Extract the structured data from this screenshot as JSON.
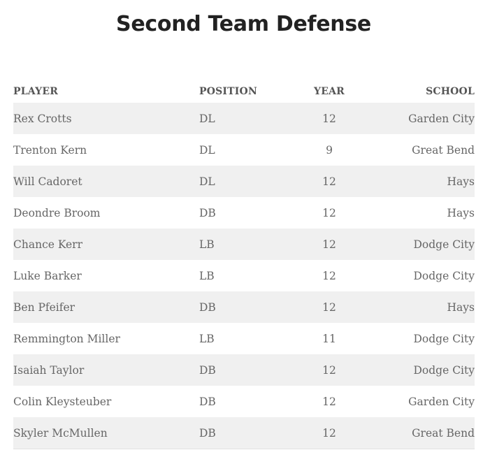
{
  "title": "Second Team Defense",
  "table": {
    "headers": {
      "player": "PLAYER",
      "position": "POSITION",
      "year": "YEAR",
      "school": "SCHOOL"
    },
    "rows": [
      {
        "player": "Rex Crotts",
        "position": "DL",
        "year": "12",
        "school": "Garden City"
      },
      {
        "player": "Trenton Kern",
        "position": "DL",
        "year": "9",
        "school": "Great Bend"
      },
      {
        "player": "Will Cadoret",
        "position": "DL",
        "year": "12",
        "school": "Hays"
      },
      {
        "player": "Deondre Broom",
        "position": "DB",
        "year": "12",
        "school": "Hays"
      },
      {
        "player": "Chance Kerr",
        "position": "LB",
        "year": "12",
        "school": "Dodge City"
      },
      {
        "player": "Luke Barker",
        "position": "LB",
        "year": "12",
        "school": "Dodge City"
      },
      {
        "player": "Ben Pfeifer",
        "position": "DB",
        "year": "12",
        "school": "Hays"
      },
      {
        "player": "Remmington Miller",
        "position": "LB",
        "year": "11",
        "school": "Dodge City"
      },
      {
        "player": "Isaiah Taylor",
        "position": "DB",
        "year": "12",
        "school": "Dodge City"
      },
      {
        "player": "Colin Kleysteuber",
        "position": "DB",
        "year": "12",
        "school": "Garden City"
      },
      {
        "player": "Skyler McMullen",
        "position": "DB",
        "year": "12",
        "school": "Great Bend"
      }
    ]
  }
}
